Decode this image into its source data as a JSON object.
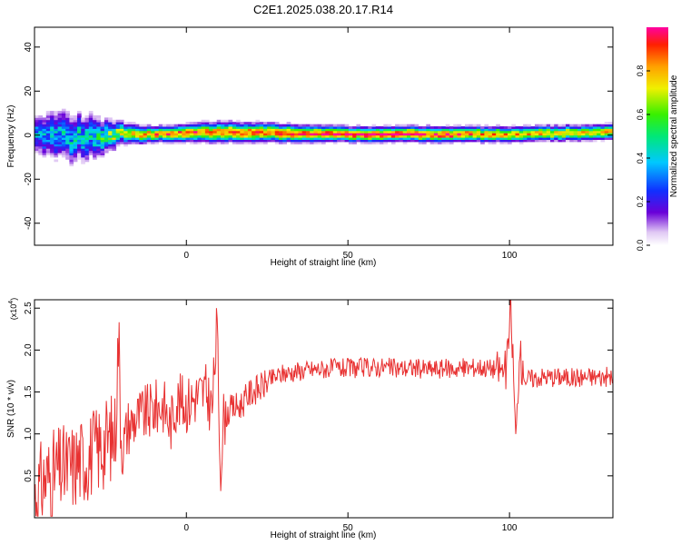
{
  "figure": {
    "title": "C2E1.2025.038.20.17.R14"
  },
  "chart_data": [
    {
      "type": "heatmap",
      "xlabel": "Height of straight line (km)",
      "ylabel": "Frequency (Hz)",
      "xlim": [
        -47,
        132
      ],
      "ylim": [
        -50,
        49
      ],
      "xticks": [
        0,
        50,
        100
      ],
      "yticks": [
        -40,
        -20,
        0,
        20,
        40
      ],
      "colorbar": {
        "label": "Normalized spectral amplitude",
        "range": [
          0,
          1
        ],
        "ticks": [
          "0.0",
          "0.2",
          "0.4",
          "0.6",
          "0.8"
        ],
        "ticks_values": [
          0,
          0.2,
          0.4,
          0.6,
          0.8
        ]
      },
      "band_profile": [
        {
          "x": -47,
          "center": 0,
          "halfwidth": 8,
          "peak": 0.35
        },
        {
          "x": -40,
          "center": -1,
          "halfwidth": 10,
          "peak": 0.4
        },
        {
          "x": -30,
          "center": -1,
          "halfwidth": 9,
          "peak": 0.45
        },
        {
          "x": -20,
          "center": 0,
          "halfwidth": 4,
          "peak": 0.7
        },
        {
          "x": -10,
          "center": 0,
          "halfwidth": 3,
          "peak": 0.85
        },
        {
          "x": 10,
          "center": 1,
          "halfwidth": 4,
          "peak": 0.9
        },
        {
          "x": 50,
          "center": 0,
          "halfwidth": 3,
          "peak": 0.95
        },
        {
          "x": 80,
          "center": 0,
          "halfwidth": 3,
          "peak": 0.95
        },
        {
          "x": 100,
          "center": 0,
          "halfwidth": 3,
          "peak": 0.8
        },
        {
          "x": 132,
          "center": 1,
          "halfwidth": 3,
          "peak": 0.8
        }
      ]
    },
    {
      "type": "line",
      "xlabel": "Height of straight line (km)",
      "ylabel": "SNR (10 * v/v)",
      "multiplier": "(x10",
      "multiplier_exp": "4",
      "multiplier_close": ")",
      "xlim": [
        -47,
        132
      ],
      "ylim": [
        0,
        2.6
      ],
      "xticks": [
        0,
        50,
        100
      ],
      "yticks": [
        0.5,
        1.0,
        1.5,
        2.0,
        2.5
      ],
      "ytick_labels": [
        "0.5",
        "1.0",
        "1.5",
        "2.0",
        "2.5"
      ],
      "line_color": "#e83232",
      "series": [
        {
          "x": [
            -47,
            -44,
            -40,
            -36,
            -32,
            -28,
            -25,
            -22,
            -21,
            -20,
            -18,
            -15,
            -12,
            -10,
            -7,
            -5,
            -3,
            0,
            3,
            6,
            8,
            9.5,
            10.5,
            11.5,
            14,
            17,
            20,
            23,
            26,
            30,
            35,
            40,
            45,
            50,
            55,
            60,
            65,
            70,
            75,
            80,
            85,
            90,
            95,
            99,
            100.5,
            102,
            103,
            105,
            110,
            115,
            120,
            125,
            132
          ],
          "y": [
            0.25,
            0.45,
            0.55,
            0.6,
            0.7,
            0.8,
            0.9,
            1.0,
            2.2,
            0.8,
            1.1,
            1.2,
            1.25,
            1.3,
            1.35,
            1.1,
            1.4,
            1.35,
            1.45,
            1.5,
            1.3,
            2.3,
            0.55,
            1.2,
            1.3,
            1.35,
            1.5,
            1.55,
            1.65,
            1.72,
            1.75,
            1.77,
            1.78,
            1.78,
            1.79,
            1.8,
            1.78,
            1.79,
            1.77,
            1.78,
            1.78,
            1.8,
            1.78,
            1.75,
            2.5,
            0.85,
            1.95,
            1.65,
            1.68,
            1.68,
            1.67,
            1.68,
            1.68
          ]
        }
      ]
    }
  ]
}
